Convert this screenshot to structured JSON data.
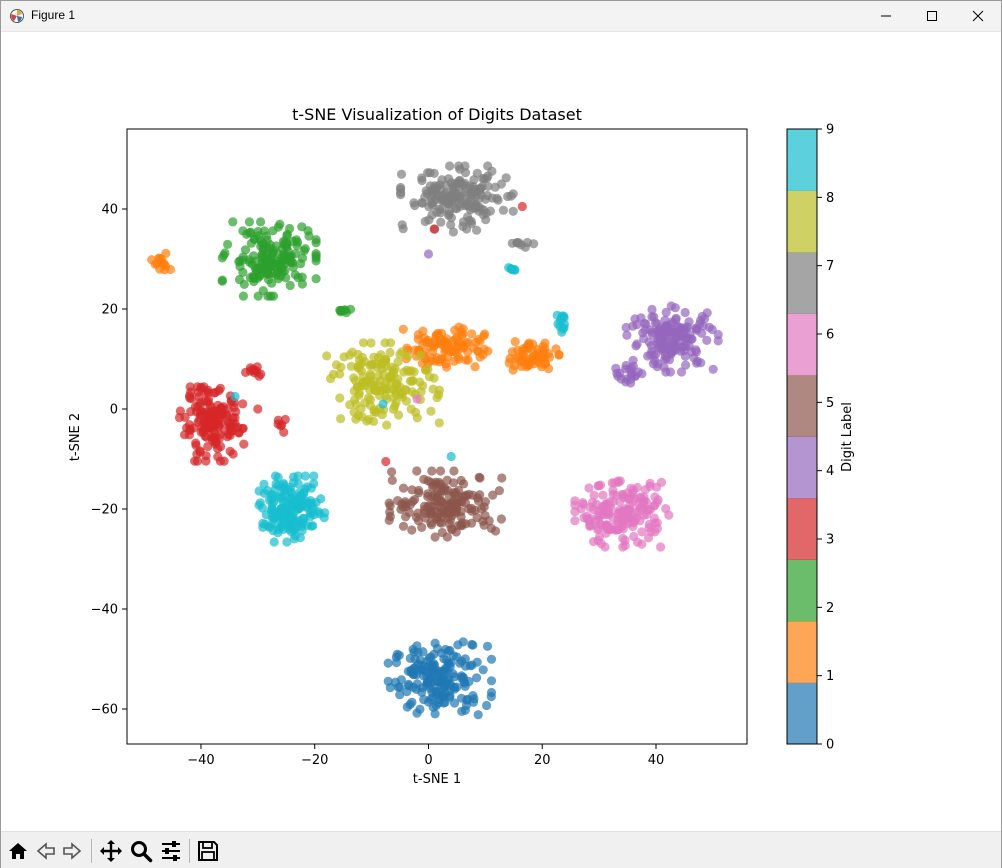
{
  "window": {
    "title": "Figure 1"
  },
  "colors": {
    "tab10": [
      "#1f77b4",
      "#ff7f0e",
      "#2ca02c",
      "#d62728",
      "#9467bd",
      "#8c564b",
      "#e377c2",
      "#7f7f7f",
      "#bcbd22",
      "#17becf"
    ],
    "colorbar_ticks": [
      "0",
      "1",
      "2",
      "3",
      "4",
      "5",
      "6",
      "7",
      "8",
      "9"
    ]
  },
  "chart_data": {
    "type": "scatter",
    "title": "t-SNE Visualization of Digits Dataset",
    "xlabel": "t-SNE 1",
    "ylabel": "t-SNE 2",
    "xlim": [
      -53,
      56
    ],
    "ylim": [
      -67,
      56
    ],
    "xticks": [
      -40,
      -20,
      0,
      20,
      40
    ],
    "yticks": [
      -60,
      -40,
      -20,
      0,
      20,
      40
    ],
    "grid": false,
    "colorbar": {
      "label": "Digit Label",
      "min": 0,
      "max": 9,
      "ticks": [
        0,
        1,
        2,
        3,
        4,
        5,
        6,
        7,
        8,
        9
      ]
    },
    "clusters": [
      {
        "label": 0,
        "center": [
          2,
          -54
        ],
        "spread": [
          5.5,
          4.5
        ],
        "count": 180
      },
      {
        "label": 1,
        "center": [
          3,
          12.5
        ],
        "spread": [
          4.5,
          2.8
        ],
        "count": 100
      },
      {
        "label": 1,
        "center": [
          18,
          10.5
        ],
        "spread": [
          3,
          1.8
        ],
        "count": 60
      },
      {
        "label": 1,
        "center": [
          -47,
          29
        ],
        "spread": [
          1,
          1.3
        ],
        "count": 15
      },
      {
        "label": 2,
        "center": [
          -28,
          30
        ],
        "spread": [
          5,
          4.5
        ],
        "count": 170
      },
      {
        "label": 2,
        "center": [
          -14.5,
          19.8
        ],
        "spread": [
          1,
          0.5
        ],
        "count": 8
      },
      {
        "label": 3,
        "center": [
          -38,
          -3
        ],
        "spread": [
          3.5,
          4.5
        ],
        "count": 150
      },
      {
        "label": 3,
        "center": [
          -31,
          7.5
        ],
        "spread": [
          1.2,
          0.7
        ],
        "count": 10
      },
      {
        "label": 3,
        "center": [
          -26,
          -3
        ],
        "spread": [
          0.7,
          1
        ],
        "count": 6
      },
      {
        "label": 4,
        "center": [
          43,
          14
        ],
        "spread": [
          5,
          4
        ],
        "count": 160
      },
      {
        "label": 4,
        "center": [
          35,
          7
        ],
        "spread": [
          2,
          1.2
        ],
        "count": 18
      },
      {
        "label": 5,
        "center": [
          3,
          -19
        ],
        "spread": [
          6,
          4
        ],
        "count": 170
      },
      {
        "label": 6,
        "center": [
          34,
          -21
        ],
        "spread": [
          5,
          4
        ],
        "count": 180
      },
      {
        "label": 7,
        "center": [
          5,
          42
        ],
        "spread": [
          6,
          4
        ],
        "count": 170
      },
      {
        "label": 7,
        "center": [
          16,
          33
        ],
        "spread": [
          1.5,
          0.5
        ],
        "count": 8
      },
      {
        "label": 8,
        "center": [
          -8,
          5
        ],
        "spread": [
          6,
          5
        ],
        "count": 160
      },
      {
        "label": 9,
        "center": [
          -24,
          -20
        ],
        "spread": [
          3.5,
          4
        ],
        "count": 160
      },
      {
        "label": 9,
        "center": [
          23.5,
          17
        ],
        "spread": [
          0.9,
          1.5
        ],
        "count": 12
      },
      {
        "label": 9,
        "center": [
          14.5,
          28
        ],
        "spread": [
          0.8,
          0.7
        ],
        "count": 6
      }
    ],
    "outliers": [
      {
        "label": 3,
        "x": 1,
        "y": 36
      },
      {
        "label": 3,
        "x": 16.5,
        "y": 40.5
      },
      {
        "label": 3,
        "x": -7.5,
        "y": -10.5
      },
      {
        "label": 3,
        "x": -30,
        "y": 0
      },
      {
        "label": 4,
        "x": 0,
        "y": 31
      },
      {
        "label": 6,
        "x": -2,
        "y": 2
      },
      {
        "label": 9,
        "x": -34,
        "y": 2.5
      },
      {
        "label": 9,
        "x": -8,
        "y": 1
      },
      {
        "label": 9,
        "x": 4,
        "y": -9.5
      }
    ]
  },
  "toolbar": {
    "buttons": [
      "home-icon",
      "back-arrow-icon",
      "forward-arrow-icon",
      "pan-icon",
      "zoom-icon",
      "configure-subplots-icon",
      "save-icon"
    ]
  }
}
